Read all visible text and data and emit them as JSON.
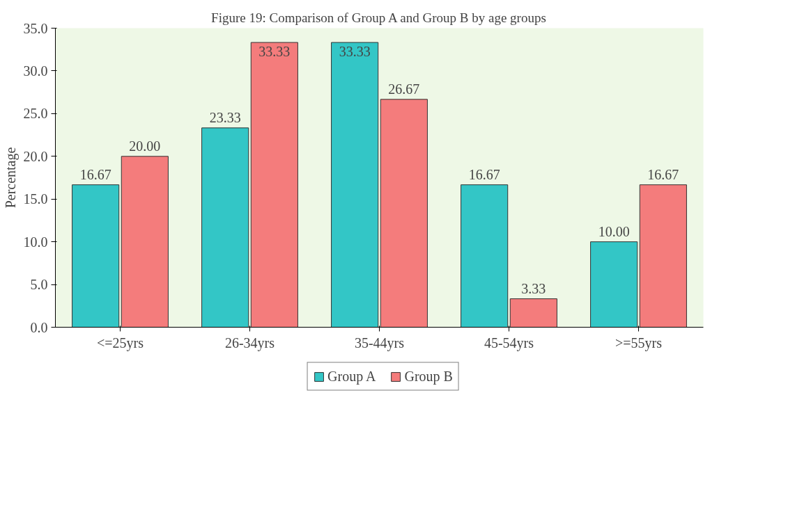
{
  "chart_data": {
    "type": "bar",
    "title": "Figure 19: Comparison of Group A and Group B by age groups",
    "ylabel": "Percentage",
    "categories": [
      "<=25yrs",
      "26-34yrs",
      "35-44yrs",
      "45-54yrs",
      ">=55yrs"
    ],
    "series": [
      {
        "name": "Group A",
        "color": "#33c6c6",
        "values": [
          16.67,
          23.33,
          33.33,
          16.67,
          10.0
        ],
        "value_labels": [
          "16.67",
          "23.33",
          "33.33",
          "16.67",
          "10.00"
        ]
      },
      {
        "name": "Group B",
        "color": "#f47c7c",
        "values": [
          20.0,
          33.33,
          26.67,
          3.33,
          16.67
        ],
        "value_labels": [
          "20.00",
          "33.33",
          "26.67",
          "3.33",
          "16.67"
        ]
      }
    ],
    "ylim": [
      0,
      35
    ],
    "yticks": [
      {
        "value": 0,
        "label": "0.0"
      },
      {
        "value": 5,
        "label": "5.0"
      },
      {
        "value": 10,
        "label": "10.0"
      },
      {
        "value": 15,
        "label": "15.0"
      },
      {
        "value": 20,
        "label": "20.0"
      },
      {
        "value": 25,
        "label": "25.0"
      },
      {
        "value": 30,
        "label": "30.0"
      },
      {
        "value": 35,
        "label": "35.0"
      }
    ],
    "grid": false,
    "legend": "bottom"
  }
}
